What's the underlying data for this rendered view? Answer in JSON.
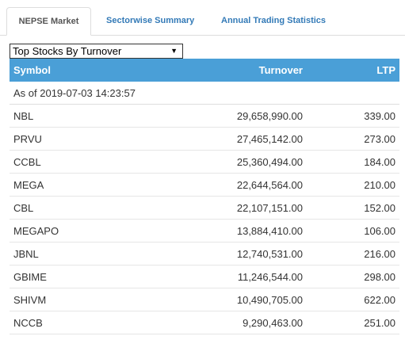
{
  "tabs": [
    {
      "label": "NEPSE Market",
      "active": true
    },
    {
      "label": "Sectorwise Summary",
      "active": false
    },
    {
      "label": "Annual Trading Statistics",
      "active": false
    }
  ],
  "selector": {
    "value": "Top Stocks By Turnover",
    "arrow": "▼"
  },
  "table": {
    "headers": {
      "symbol": "Symbol",
      "turnover": "Turnover",
      "ltp": "LTP"
    },
    "as_of": "As of 2019-07-03 14:23:57",
    "rows": [
      {
        "symbol": "NBL",
        "turnover": "29,658,990.00",
        "ltp": "339.00"
      },
      {
        "symbol": "PRVU",
        "turnover": "27,465,142.00",
        "ltp": "273.00"
      },
      {
        "symbol": "CCBL",
        "turnover": "25,360,494.00",
        "ltp": "184.00"
      },
      {
        "symbol": "MEGA",
        "turnover": "22,644,564.00",
        "ltp": "210.00"
      },
      {
        "symbol": "CBL",
        "turnover": "22,107,151.00",
        "ltp": "152.00"
      },
      {
        "symbol": "MEGAPO",
        "turnover": "13,884,410.00",
        "ltp": "106.00"
      },
      {
        "symbol": "JBNL",
        "turnover": "12,740,531.00",
        "ltp": "216.00"
      },
      {
        "symbol": "GBIME",
        "turnover": "11,246,544.00",
        "ltp": "298.00"
      },
      {
        "symbol": "SHIVM",
        "turnover": "10,490,705.00",
        "ltp": "622.00"
      },
      {
        "symbol": "NCCB",
        "turnover": "9,290,463.00",
        "ltp": "251.00"
      }
    ]
  },
  "colors": {
    "header_bg": "#4a9fd7",
    "tab_link": "#337ab7"
  }
}
